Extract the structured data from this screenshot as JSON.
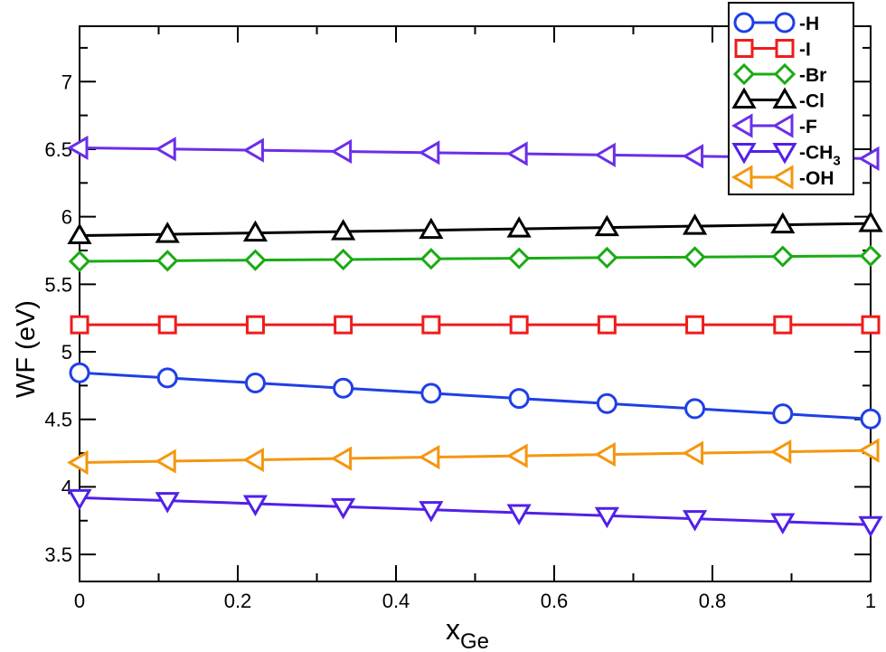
{
  "chart_data": {
    "type": "line",
    "title": "",
    "xlabel": "x",
    "xlabel_subscript": "Ge",
    "ylabel": "WF (eV)",
    "xlim": [
      0,
      1
    ],
    "ylim": [
      3.3,
      7.41
    ],
    "x_ticks": [
      0,
      0.2,
      0.4,
      0.6,
      0.8,
      1
    ],
    "x_tick_labels": [
      "0",
      "0.2",
      "0.4",
      "0.6",
      "0.8",
      "1"
    ],
    "y_ticks": [
      3.5,
      4,
      4.5,
      5,
      5.5,
      6,
      6.5,
      7
    ],
    "y_tick_labels": [
      "3.5",
      "4",
      "4.5",
      "5",
      "5.5",
      "6",
      "6.5",
      "7"
    ],
    "grid": false,
    "legend_position": "upper right",
    "x": [
      0,
      0.1111,
      0.2222,
      0.3333,
      0.4444,
      0.5556,
      0.6667,
      0.7778,
      0.8889,
      1.0
    ],
    "series": [
      {
        "name": "-H",
        "marker": "circle",
        "color": "#1f3fe6",
        "values": [
          4.845,
          4.807,
          4.769,
          4.731,
          4.693,
          4.655,
          4.617,
          4.579,
          4.541,
          4.503
        ]
      },
      {
        "name": "-I",
        "marker": "square",
        "color": "#ee1c1c",
        "values": [
          5.2,
          5.2,
          5.2,
          5.2,
          5.2,
          5.2,
          5.2,
          5.2,
          5.2,
          5.2
        ]
      },
      {
        "name": "-Br",
        "marker": "diamond",
        "color": "#1aab14",
        "values": [
          5.67,
          5.674,
          5.679,
          5.683,
          5.688,
          5.692,
          5.697,
          5.701,
          5.706,
          5.71
        ]
      },
      {
        "name": "-Cl",
        "marker": "triangle-up",
        "color": "#000000",
        "values": [
          5.86,
          5.87,
          5.88,
          5.89,
          5.9,
          5.91,
          5.92,
          5.93,
          5.94,
          5.95
        ]
      },
      {
        "name": "-F",
        "marker": "triangle-left",
        "color": "#6b2ee8",
        "values": [
          6.51,
          6.501,
          6.492,
          6.483,
          6.474,
          6.466,
          6.457,
          6.448,
          6.439,
          6.43
        ]
      },
      {
        "name": "-CH3",
        "label_main": "-CH",
        "label_sub": "3",
        "marker": "triangle-down",
        "color": "#5220e8",
        "values": [
          3.92,
          3.898,
          3.876,
          3.853,
          3.831,
          3.809,
          3.787,
          3.764,
          3.742,
          3.72
        ]
      },
      {
        "name": "-OH",
        "marker": "triangle-left",
        "color": "#f5960f",
        "values": [
          4.18,
          4.19,
          4.2,
          4.21,
          4.22,
          4.23,
          4.24,
          4.25,
          4.26,
          4.27
        ]
      }
    ]
  },
  "legend": {
    "items": [
      {
        "label": "-H",
        "sub": ""
      },
      {
        "label": "-I",
        "sub": ""
      },
      {
        "label": "-Br",
        "sub": ""
      },
      {
        "label": "-Cl",
        "sub": ""
      },
      {
        "label": "-F",
        "sub": ""
      },
      {
        "label": "-CH",
        "sub": "3"
      },
      {
        "label": "-OH",
        "sub": ""
      }
    ]
  }
}
